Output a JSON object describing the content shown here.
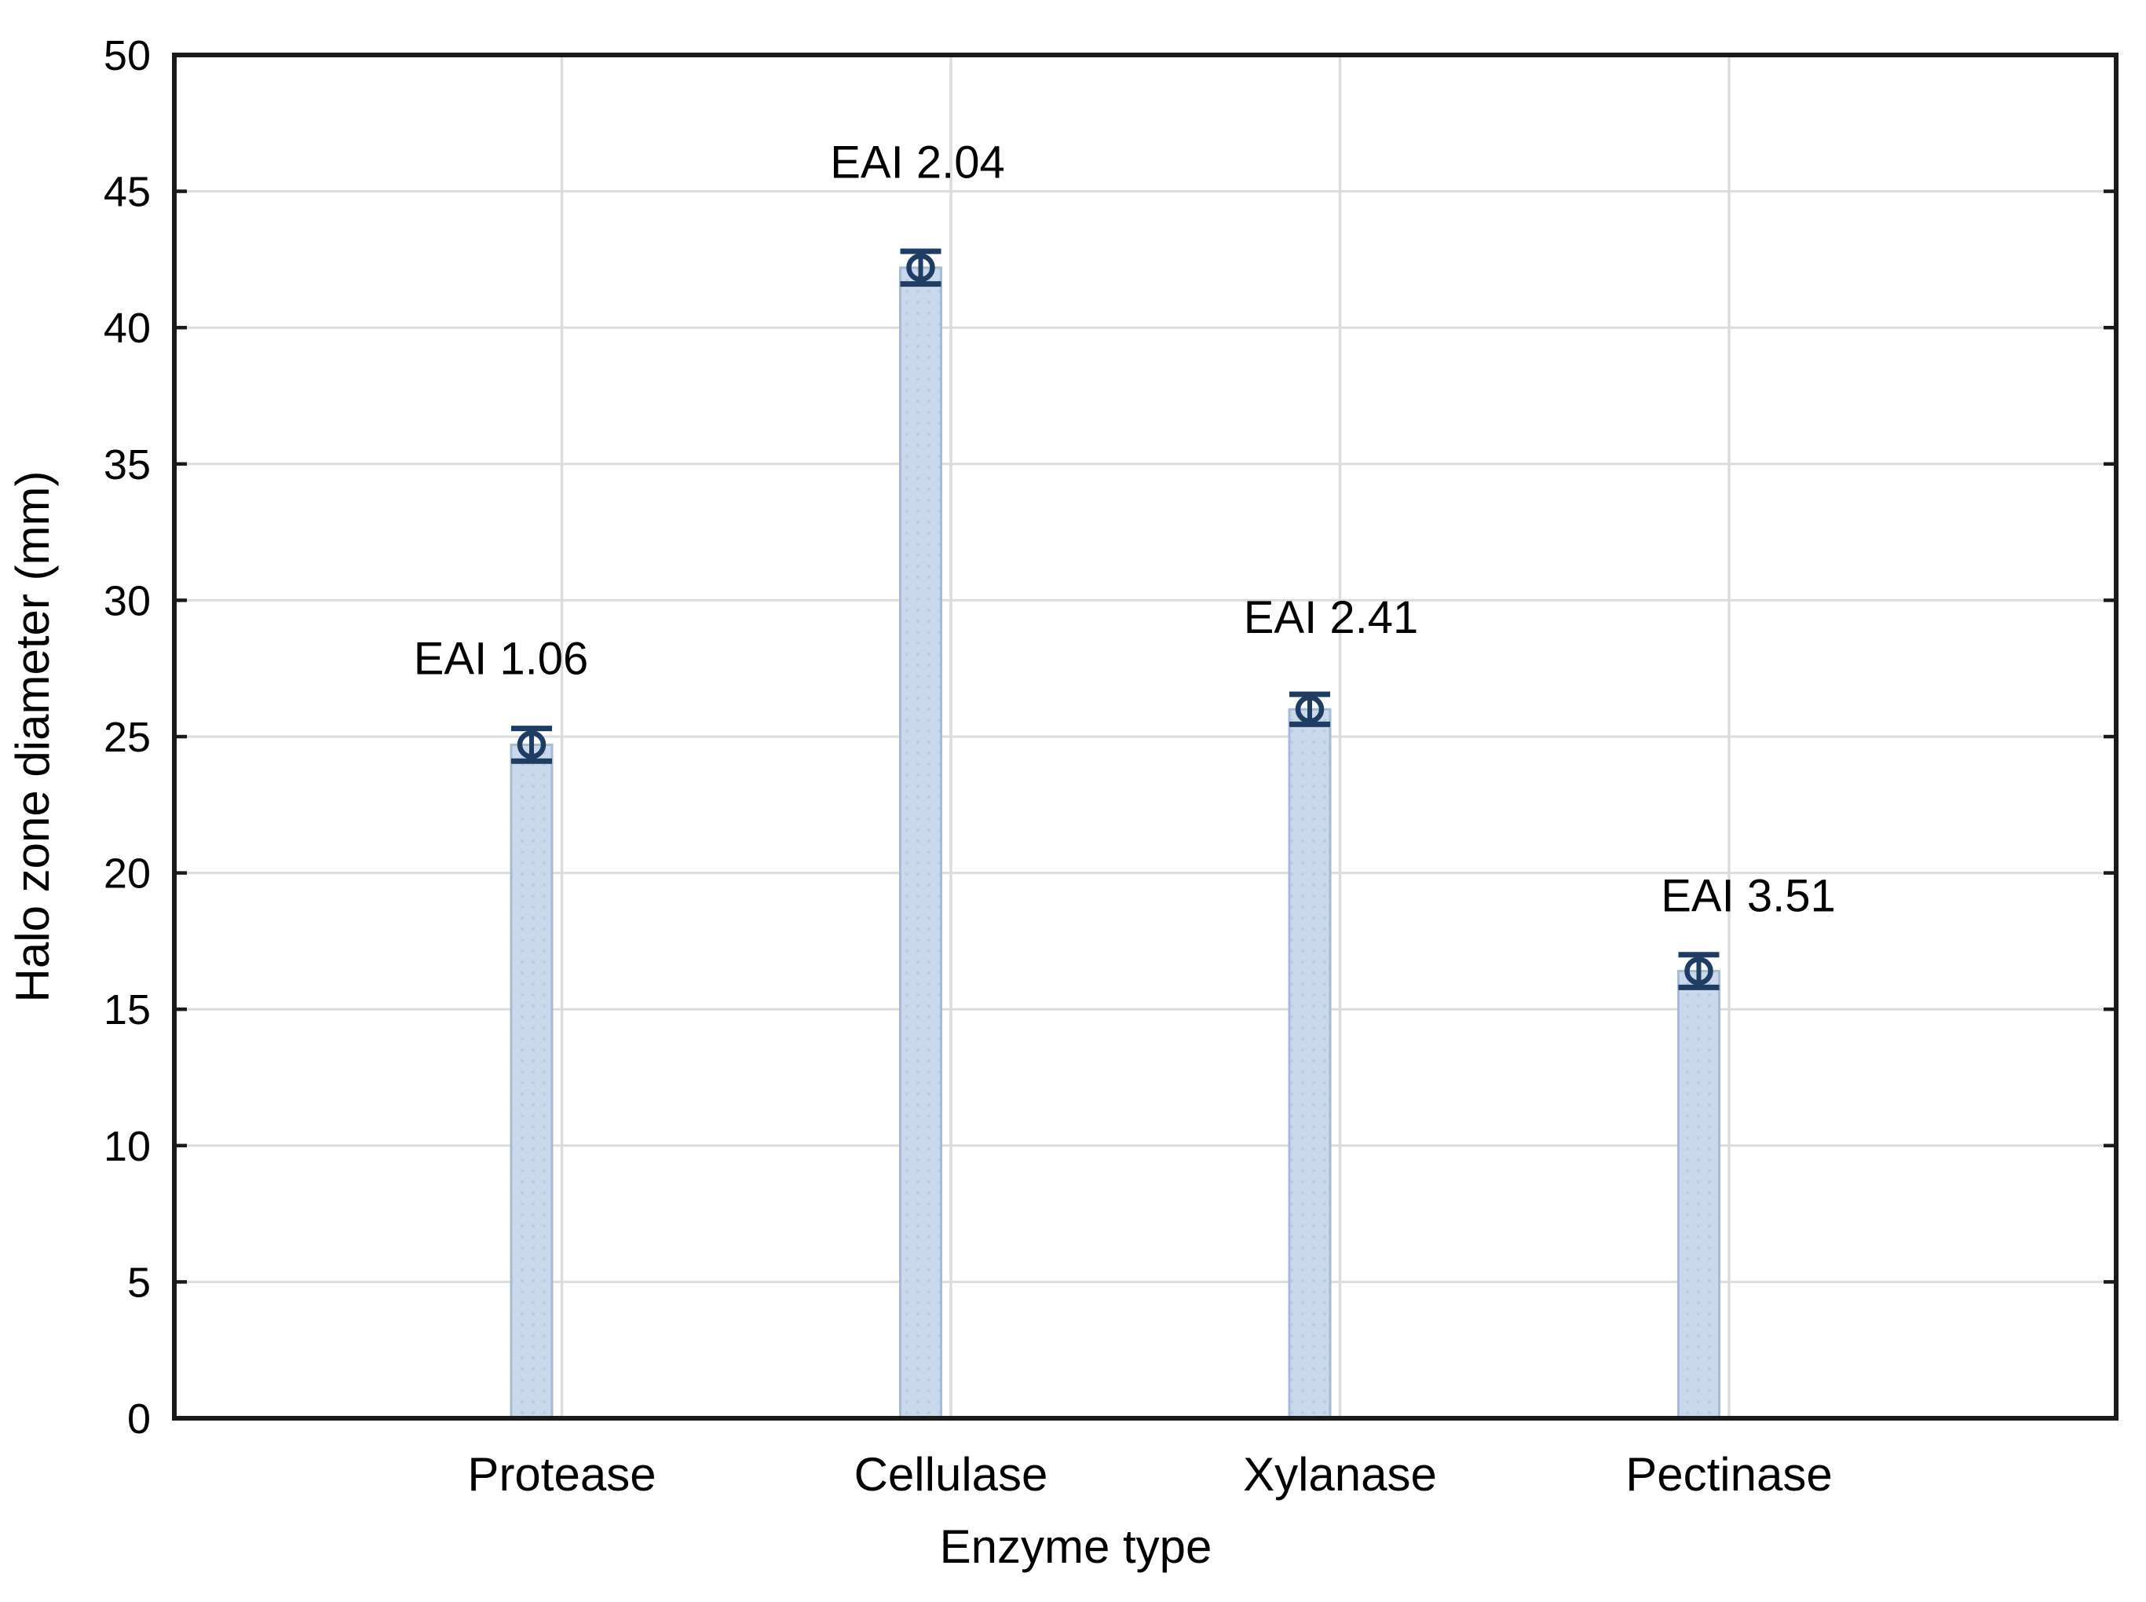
{
  "chart_data": {
    "type": "bar",
    "title": "",
    "xlabel": "Enzyme type",
    "ylabel": "Halo zone diameter (mm)",
    "categories": [
      "Protease",
      "Cellulase",
      "Xylanase",
      "Pectinase"
    ],
    "values": [
      24.7,
      42.2,
      26.0,
      16.4
    ],
    "errors": [
      0.6,
      0.6,
      0.55,
      0.6
    ],
    "annotations": [
      {
        "text": "EAI 1.06",
        "value_y": 27.9,
        "dx": -39
      },
      {
        "text": "EAI 2.04",
        "value_y": 46.1,
        "dx": -4
      },
      {
        "text": "EAI 2.41",
        "value_y": 29.4,
        "dx": 27
      },
      {
        "text": "EAI 3.51",
        "value_y": 19.2,
        "dx": 63
      }
    ],
    "ylim": [
      0,
      50
    ],
    "ytick_step": 5,
    "grid": true,
    "legend": "none",
    "error_marker_shape": "open-circle-with-caps",
    "colors": {
      "bar_fill": "#C9D8EB",
      "bar_border": "#A6BBD7",
      "bar_dots": "#BACCE4",
      "error_marker": "#1F3D63",
      "gridline": "#DCDCDC",
      "frame": "#1A1A1A",
      "text": "#000000",
      "background": "#FFFFFF"
    }
  }
}
